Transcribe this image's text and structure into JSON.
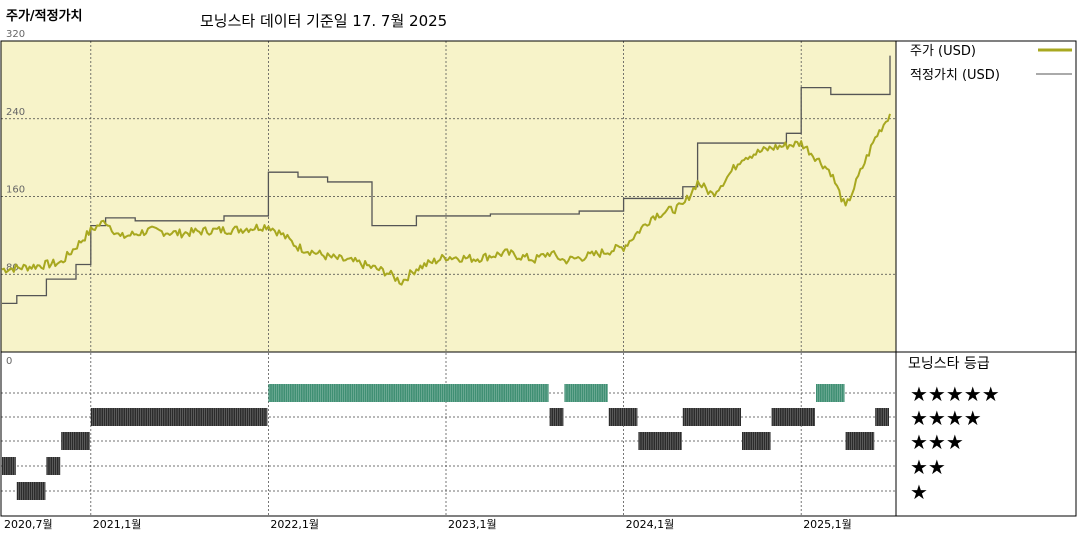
{
  "header": {
    "left_title": "주가/적정가치",
    "subtitle": "모닝스타 데이터 기준일 17. 7월 2025"
  },
  "legend": {
    "price_label": "주가 (USD)",
    "fair_label": "적정가치 (USD)",
    "rating_title": "모닝스타 등급"
  },
  "colors": {
    "price_line": "#a8a820",
    "fair_line": "#555555",
    "upper_bg": "#f7f3c9",
    "rating5": "#3f8f73",
    "rating_other": "#2b2b2b",
    "grid": "#999999"
  },
  "chart_data": [
    {
      "type": "line",
      "title": "",
      "x_ticks": [
        "2020,7월",
        "2021,1월",
        "2022,1월",
        "2023,1월",
        "2024,1월",
        "2025,1월"
      ],
      "x_range": [
        "2020-07",
        "2025-07"
      ],
      "y_ticks": [
        80,
        160,
        240,
        320
      ],
      "ylim": [
        0,
        320
      ],
      "grid": true,
      "legend_position": "right",
      "series": [
        {
          "name": "주가 (USD)",
          "points": [
            [
              "2020-07",
              85
            ],
            [
              "2020-09",
              88
            ],
            [
              "2020-11",
              92
            ],
            [
              "2021-01",
              125
            ],
            [
              "2021-02",
              135
            ],
            [
              "2021-03",
              118
            ],
            [
              "2021-05",
              125
            ],
            [
              "2021-07",
              122
            ],
            [
              "2021-09",
              125
            ],
            [
              "2021-11",
              126
            ],
            [
              "2022-01",
              130
            ],
            [
              "2022-02",
              120
            ],
            [
              "2022-03",
              108
            ],
            [
              "2022-05",
              98
            ],
            [
              "2022-07",
              92
            ],
            [
              "2022-09",
              82
            ],
            [
              "2022-10",
              72
            ],
            [
              "2022-11",
              86
            ],
            [
              "2023-01",
              98
            ],
            [
              "2023-03",
              96
            ],
            [
              "2023-05",
              102
            ],
            [
              "2023-07",
              95
            ],
            [
              "2023-08",
              102
            ],
            [
              "2023-09",
              94
            ],
            [
              "2023-11",
              100
            ],
            [
              "2024-01",
              108
            ],
            [
              "2024-03",
              140
            ],
            [
              "2024-05",
              150
            ],
            [
              "2024-06",
              175
            ],
            [
              "2024-07",
              162
            ],
            [
              "2024-08",
              180
            ],
            [
              "2024-09",
              200
            ],
            [
              "2024-11",
              210
            ],
            [
              "2025-01",
              215
            ],
            [
              "2025-03",
              185
            ],
            [
              "2025-04",
              148
            ],
            [
              "2025-05",
              185
            ],
            [
              "2025-06",
              220
            ],
            [
              "2025-07",
              245
            ]
          ]
        },
        {
          "name": "적정가치 (USD)",
          "points": [
            [
              "2020-07",
              50
            ],
            [
              "2020-08",
              58
            ],
            [
              "2020-10",
              75
            ],
            [
              "2020-12",
              90
            ],
            [
              "2021-01",
              130
            ],
            [
              "2021-02",
              138
            ],
            [
              "2021-04",
              135
            ],
            [
              "2021-10",
              140
            ],
            [
              "2022-01",
              185
            ],
            [
              "2022-03",
              180
            ],
            [
              "2022-05",
              175
            ],
            [
              "2022-08",
              130
            ],
            [
              "2022-11",
              140
            ],
            [
              "2023-04",
              142
            ],
            [
              "2023-10",
              145
            ],
            [
              "2024-01",
              158
            ],
            [
              "2024-05",
              170
            ],
            [
              "2024-06",
              215
            ],
            [
              "2024-12",
              225
            ],
            [
              "2025-01",
              272
            ],
            [
              "2025-03",
              265
            ],
            [
              "2025-07",
              305
            ]
          ]
        }
      ]
    },
    {
      "type": "bar",
      "title": "모닝스타 등급",
      "star_labels": [
        "★★★★★",
        "★★★★",
        "★★★",
        "★★",
        "★"
      ],
      "rating_periods": [
        {
          "from": "2020-07",
          "to": "2020-08",
          "stars": 2
        },
        {
          "from": "2020-08",
          "to": "2020-10",
          "stars": 1
        },
        {
          "from": "2020-10",
          "to": "2020-11",
          "stars": 2
        },
        {
          "from": "2020-11",
          "to": "2021-01",
          "stars": 3
        },
        {
          "from": "2021-01",
          "to": "2022-01",
          "stars": 4
        },
        {
          "from": "2022-01",
          "to": "2023-08",
          "stars": 5
        },
        {
          "from": "2023-08",
          "to": "2023-09",
          "stars": 4
        },
        {
          "from": "2023-09",
          "to": "2023-12",
          "stars": 5
        },
        {
          "from": "2023-12",
          "to": "2024-02",
          "stars": 4
        },
        {
          "from": "2024-02",
          "to": "2024-05",
          "stars": 3
        },
        {
          "from": "2024-05",
          "to": "2024-09",
          "stars": 4
        },
        {
          "from": "2024-09",
          "to": "2024-11",
          "stars": 3
        },
        {
          "from": "2024-11",
          "to": "2025-02",
          "stars": 4
        },
        {
          "from": "2025-02",
          "to": "2025-04",
          "stars": 5
        },
        {
          "from": "2025-04",
          "to": "2025-06",
          "stars": 3
        },
        {
          "from": "2025-06",
          "to": "2025-07",
          "stars": 4
        }
      ]
    }
  ]
}
